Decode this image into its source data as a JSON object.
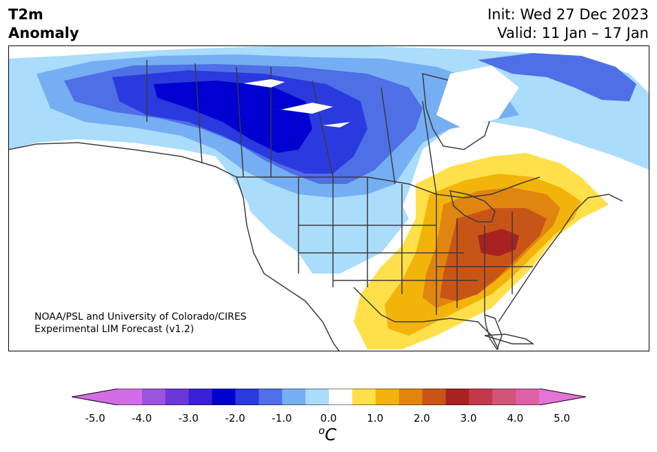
{
  "title": {
    "line1": "T2m",
    "line2": "Anomaly"
  },
  "subtitle": {
    "init": "Init: Wed 27 Dec 2023",
    "valid": "Valid: 11 Jan – 17 Jan"
  },
  "credit": {
    "line1": "NOAA/PSL and University of Colorado/CIRES",
    "line2": "Experimental LIM Forecast (v1.2)"
  },
  "colorbar": {
    "ticks": [
      "-5.0",
      "-4.0",
      "-3.0",
      "-2.0",
      "-1.0",
      "0.0",
      "1.0",
      "2.0",
      "3.0",
      "4.0",
      "5.0"
    ],
    "unit_sup": "o",
    "unit": "C",
    "colors": [
      "#d36de6",
      "#9b55dd",
      "#6b38d8",
      "#3a20d6",
      "#0000d0",
      "#2a3ade",
      "#4e6fe6",
      "#75aef2",
      "#aadcfb",
      "#ffffff",
      "#ffe04a",
      "#f2b40a",
      "#e08610",
      "#c85518",
      "#a82222",
      "#c23a4a",
      "#d05576",
      "#dc62a6"
    ],
    "under_color": "#d36de6",
    "over_color": "#e673d8",
    "range": [
      -5.0,
      5.0
    ],
    "step": 0.5
  },
  "map": {
    "region": "North America",
    "land_color": "#ffffff",
    "water_color": "#ffffff",
    "border_color": "#3a3a3a"
  }
}
